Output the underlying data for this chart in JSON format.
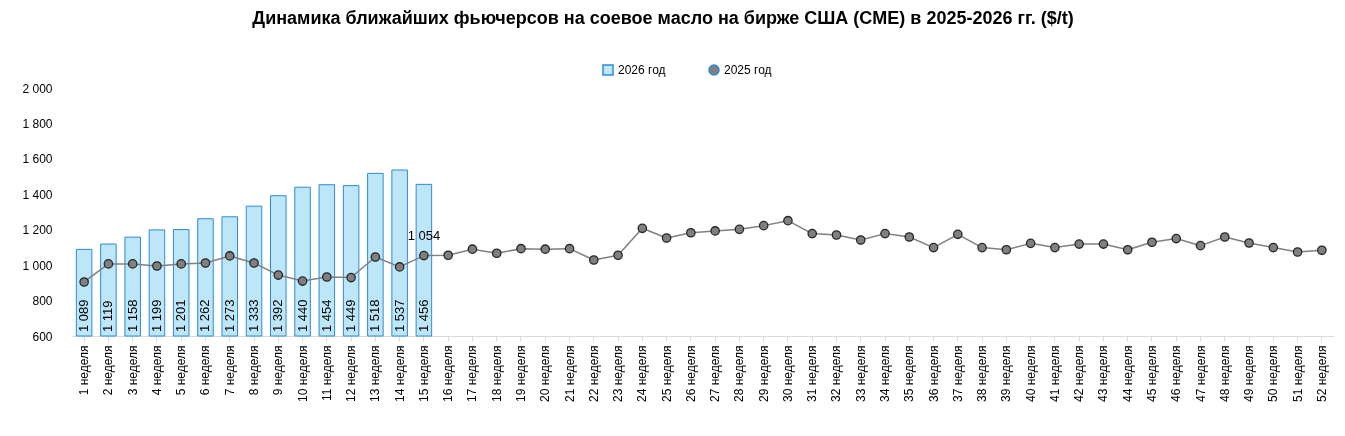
{
  "chart_data": {
    "type": "bar",
    "title": "Динамика ближайших фьючерсов на соевое масло на бирже США (CME) в 2025-2026 гг. ($/t)",
    "categories": [
      "1 неделя",
      "2 неделя",
      "3 неделя",
      "4 неделя",
      "5 неделя",
      "6 неделя",
      "7 неделя",
      "8 неделя",
      "9 неделя",
      "10 неделя",
      "11 неделя",
      "12 неделя",
      "13 неделя",
      "14 неделя",
      "15 неделя",
      "16 неделя",
      "17 неделя",
      "18 неделя",
      "19 неделя",
      "20 неделя",
      "21 неделя",
      "22 неделя",
      "23 неделя",
      "24 неделя",
      "25 неделя",
      "26 неделя",
      "27 неделя",
      "28 неделя",
      "29 неделя",
      "30 неделя",
      "31 неделя",
      "32 неделя",
      "33 неделя",
      "34 неделя",
      "35 неделя",
      "36 неделя",
      "37 неделя",
      "38 неделя",
      "39 неделя",
      "40 неделя",
      "41 неделя",
      "42 неделя",
      "43 неделя",
      "44 неделя",
      "45 неделя",
      "46 неделя",
      "47 неделя",
      "48 неделя",
      "49 неделя",
      "50 неделя",
      "51 неделя",
      "52 неделя"
    ],
    "series": [
      {
        "name": "2026 год",
        "color": "#bde6f9",
        "values": [
          1089,
          1119,
          1158,
          1199,
          1201,
          1262,
          1273,
          1333,
          1392,
          1440,
          1454,
          1449,
          1518,
          1537,
          1456,
          null,
          null,
          null,
          null,
          null,
          null,
          null,
          null,
          null,
          null,
          null,
          null,
          null,
          null,
          null,
          null,
          null,
          null,
          null,
          null,
          null,
          null,
          null,
          null,
          null,
          null,
          null,
          null,
          null,
          null,
          null,
          null,
          null,
          null,
          null,
          null,
          null
        ],
        "value_labels": [
          "1 089",
          "1 119",
          "1 158",
          "1 199",
          "1 201",
          "1 262",
          "1 273",
          "1 333",
          "1 392",
          "1 440",
          "1 454",
          "1 449",
          "1 518",
          "1 537",
          "1 456",
          null,
          null,
          null,
          null,
          null,
          null,
          null,
          null,
          null,
          null,
          null,
          null,
          null,
          null,
          null,
          null,
          null,
          null,
          null,
          null,
          null,
          null,
          null,
          null,
          null,
          null,
          null,
          null,
          null,
          null,
          null,
          null,
          null,
          null,
          null,
          null,
          null
        ]
      },
      {
        "name": "2025 год",
        "type": "line",
        "color": "#808080",
        "marker": "circle",
        "values": [
          905,
          1007,
          1007,
          995,
          1007,
          1012,
          1052,
          1012,
          944,
          910,
          933,
          930,
          1046,
          990,
          1054,
          1056,
          1090,
          1067,
          1093,
          1090,
          1093,
          1029,
          1056,
          1208,
          1153,
          1183,
          1193,
          1202,
          1223,
          1251,
          1178,
          1170,
          1142,
          1178,
          1159,
          1099,
          1174,
          1099,
          1087,
          1123,
          1099,
          1119,
          1119,
          1087,
          1129,
          1150,
          1110,
          1159,
          1125,
          1099,
          1074,
          1084
        ],
        "value_labels": [
          null,
          null,
          null,
          null,
          null,
          null,
          null,
          null,
          null,
          null,
          null,
          null,
          null,
          null,
          "1 054",
          null,
          null,
          null,
          null,
          null,
          null,
          null,
          null,
          null,
          null,
          null,
          null,
          null,
          null,
          null,
          null,
          null,
          null,
          null,
          null,
          null,
          null,
          null,
          null,
          null,
          null,
          null,
          null,
          null,
          null,
          null,
          null,
          null,
          null,
          null,
          null,
          null
        ]
      }
    ],
    "ylim": [
      600,
      2000
    ],
    "yticks": [
      {
        "value": 600,
        "label": "600"
      },
      {
        "value": 800,
        "label": "800"
      },
      {
        "value": 1000,
        "label": "1 000"
      },
      {
        "value": 1200,
        "label": "1 200"
      },
      {
        "value": 1400,
        "label": "1 400"
      },
      {
        "value": 1600,
        "label": "1 600"
      },
      {
        "value": 1800,
        "label": "1 800"
      },
      {
        "value": 2000,
        "label": "2 000"
      }
    ],
    "grid": false,
    "legend": "top"
  }
}
